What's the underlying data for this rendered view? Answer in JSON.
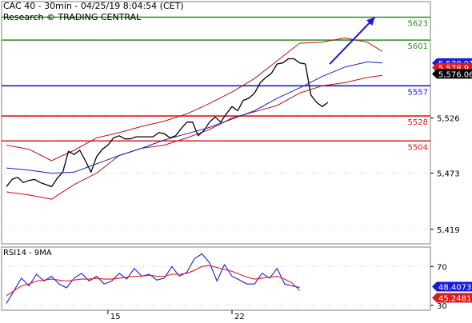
{
  "chart_data": {
    "type": "line",
    "header": {
      "instrument_line": "CAC 40 - 30min - 04/25/19 8:04:54 (CET)",
      "research_line": "Research © TRADING CENTRAL"
    },
    "price_panel": {
      "ylim": [
        5405,
        5638
      ],
      "yticks": [
        5419,
        5473,
        5526
      ],
      "ytick_labels": [
        "5,419",
        "5,473",
        "5,526"
      ],
      "xlim": [
        0,
        100
      ],
      "levels": [
        {
          "label": "5623",
          "value": 5623,
          "color": "#2e8b1e"
        },
        {
          "label": "5601",
          "value": 5601,
          "color": "#2e8b1e"
        },
        {
          "label": "5557",
          "value": 5557,
          "color": "#1a1adc"
        },
        {
          "label": "5528",
          "value": 5528,
          "color": "#dd1a1a"
        },
        {
          "label": "5504",
          "value": 5504,
          "color": "#dd1a1a"
        }
      ],
      "price_tags": [
        {
          "label": "5,578.91",
          "value": 5578.91,
          "bg": "#1a1adc",
          "fg": "#ffffff"
        },
        {
          "label": "5,578.9",
          "value": 5574.5,
          "bg": "#dd1a1a",
          "fg": "#ffffff"
        },
        {
          "label": "5,576.06",
          "value": 5568.5,
          "bg": "#000000",
          "fg": "#ffffff"
        }
      ],
      "series": [
        {
          "role": "price",
          "color": "#000000",
          "x": [
            0,
            1.5,
            3,
            4.5,
            6,
            7.5,
            9,
            10.5,
            12,
            13.5,
            15,
            16.5,
            18,
            19.5,
            21,
            22.5,
            24,
            25.5,
            27,
            28.5,
            30,
            31.5,
            33,
            34.5,
            36,
            37.5,
            39,
            40.5,
            42,
            43.5,
            45,
            46.5,
            48,
            49.5,
            51,
            52.5,
            54,
            55.5,
            57,
            58.5,
            60,
            61.5,
            63,
            64.5,
            66,
            67.5,
            69,
            70.5,
            72,
            73.5,
            75,
            76.5,
            78,
            79.5,
            81,
            82.5,
            84,
            85.5
          ],
          "values": [
            5460,
            5467,
            5469,
            5464,
            5466,
            5467,
            5464,
            5462,
            5460,
            5468,
            5474,
            5494,
            5491,
            5495,
            5485,
            5474,
            5489,
            5496,
            5500,
            5507,
            5509,
            5506,
            5506,
            5508,
            5508,
            5508,
            5508,
            5512,
            5511,
            5507,
            5509,
            5516,
            5522,
            5522,
            5509,
            5514,
            5522,
            5527,
            5522,
            5530,
            5537,
            5533,
            5543,
            5545,
            5550,
            5560,
            5565,
            5569,
            5578,
            5579,
            5583,
            5583,
            5579,
            5578,
            5548,
            5541,
            5537,
            5541
          ]
        },
        {
          "role": "moving-average",
          "color": "#2020c0",
          "x": [
            0,
            6,
            12,
            18,
            24,
            30,
            36,
            42,
            48,
            54,
            60,
            66,
            72,
            78,
            84,
            90,
            96,
            100
          ],
          "values": [
            5478,
            5476,
            5473,
            5474,
            5482,
            5490,
            5497,
            5505,
            5511,
            5517,
            5525,
            5533,
            5545,
            5555,
            5566,
            5575,
            5580,
            5579
          ]
        },
        {
          "role": "bollinger-upper",
          "color": "#c01010",
          "x": [
            0,
            6,
            12,
            18,
            24,
            30,
            36,
            42,
            48,
            54,
            60,
            66,
            72,
            78,
            84,
            90,
            96,
            100
          ],
          "values": [
            5500,
            5496,
            5485,
            5495,
            5507,
            5512,
            5518,
            5523,
            5530,
            5540,
            5551,
            5564,
            5581,
            5598,
            5599,
            5603,
            5599,
            5590
          ]
        },
        {
          "role": "bollinger-lower",
          "color": "#c01010",
          "x": [
            0,
            6,
            12,
            18,
            24,
            30,
            36,
            42,
            48,
            54,
            60,
            66,
            72,
            78,
            84,
            90,
            96,
            100
          ],
          "values": [
            5455,
            5452,
            5448,
            5462,
            5473,
            5490,
            5497,
            5500,
            5507,
            5515,
            5526,
            5532,
            5538,
            5550,
            5557,
            5560,
            5565,
            5567
          ]
        }
      ],
      "projection": {
        "from": [
          86,
          5578
        ],
        "to": [
          98,
          5623
        ],
        "color": "#1a1adc"
      }
    },
    "rsi_panel": {
      "title": "RSI14 - 9MA",
      "ylim": [
        25,
        90
      ],
      "yticks": [
        30,
        70
      ],
      "ytick_labels": [
        "30",
        "70"
      ],
      "xlim": [
        0,
        100
      ],
      "xticks": [
        27,
        60
      ],
      "xtick_labels": [
        "15",
        "22"
      ],
      "tags": [
        {
          "label": "48.4073",
          "value": 48.4073,
          "bg": "#1a1adc",
          "fg": "#ffffff"
        },
        {
          "label": "45.2481",
          "value": 45.2481,
          "bg": "#dd1a1a",
          "fg": "#ffffff"
        }
      ],
      "series": [
        {
          "name": "RSI14",
          "color": "#1a1adc",
          "x": [
            0,
            2,
            4,
            6,
            8,
            10,
            12,
            14,
            16,
            18,
            20,
            22,
            24,
            26,
            28,
            30,
            32,
            34,
            36,
            38,
            40,
            42,
            44,
            46,
            48,
            50,
            52,
            54,
            56,
            58,
            60,
            62,
            64,
            66,
            68,
            70,
            72,
            74,
            76,
            78
          ],
          "values": [
            32,
            45,
            58,
            50,
            62,
            55,
            60,
            52,
            48,
            58,
            63,
            55,
            60,
            52,
            55,
            63,
            57,
            68,
            60,
            62,
            56,
            58,
            70,
            60,
            64,
            78,
            83,
            74,
            55,
            72,
            60,
            56,
            52,
            52,
            63,
            58,
            68,
            52,
            50,
            48.4
          ]
        },
        {
          "name": "9MA",
          "color": "#dd1a1a",
          "x": [
            0,
            2,
            4,
            6,
            8,
            10,
            12,
            14,
            16,
            18,
            20,
            22,
            24,
            26,
            28,
            30,
            32,
            34,
            36,
            38,
            40,
            42,
            44,
            46,
            48,
            50,
            52,
            54,
            56,
            58,
            60,
            62,
            64,
            66,
            68,
            70,
            72,
            74,
            76,
            78
          ],
          "values": [
            40,
            45,
            50,
            52,
            55,
            56,
            57,
            56,
            55,
            56,
            57,
            57,
            58,
            57,
            57,
            58,
            59,
            60,
            60,
            61,
            60,
            60,
            62,
            62,
            63,
            66,
            70,
            71,
            69,
            67,
            65,
            62,
            59,
            57,
            58,
            59,
            60,
            57,
            53,
            45.2
          ]
        }
      ]
    }
  }
}
